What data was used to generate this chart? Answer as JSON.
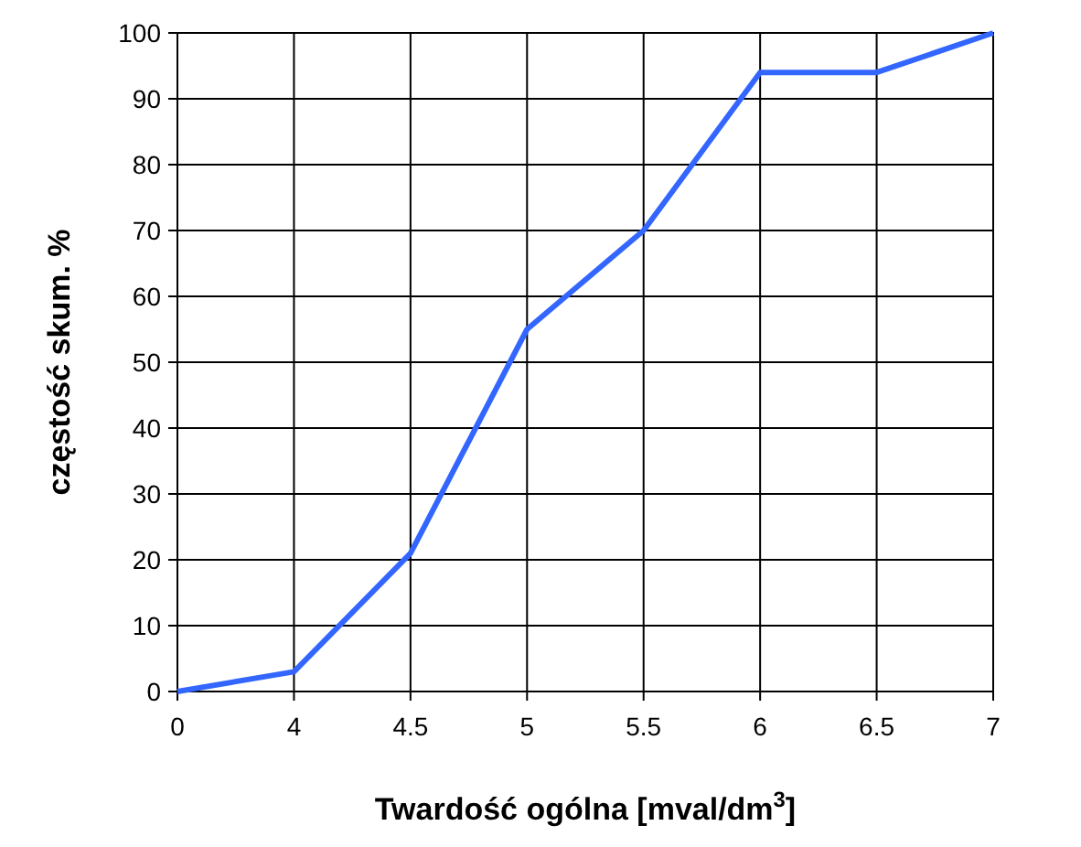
{
  "chart_data": {
    "type": "line",
    "xlabel": "Twardość ogólna [mval/dm$^{3}$]",
    "ylabel": "częstość skum. %",
    "categories": [
      "0",
      "4",
      "4.5",
      "5",
      "5.5",
      "6",
      "6.5",
      "7"
    ],
    "series": [
      {
        "color": "#3366ff",
        "values": [
          0,
          3,
          21,
          55,
          70,
          94,
          94,
          100
        ]
      }
    ],
    "ylim": [
      0,
      100
    ],
    "yticks": [
      0,
      10,
      20,
      30,
      40,
      50,
      60,
      70,
      80,
      90,
      100
    ],
    "grid": true,
    "marker": "none",
    "line_style": "solid"
  }
}
